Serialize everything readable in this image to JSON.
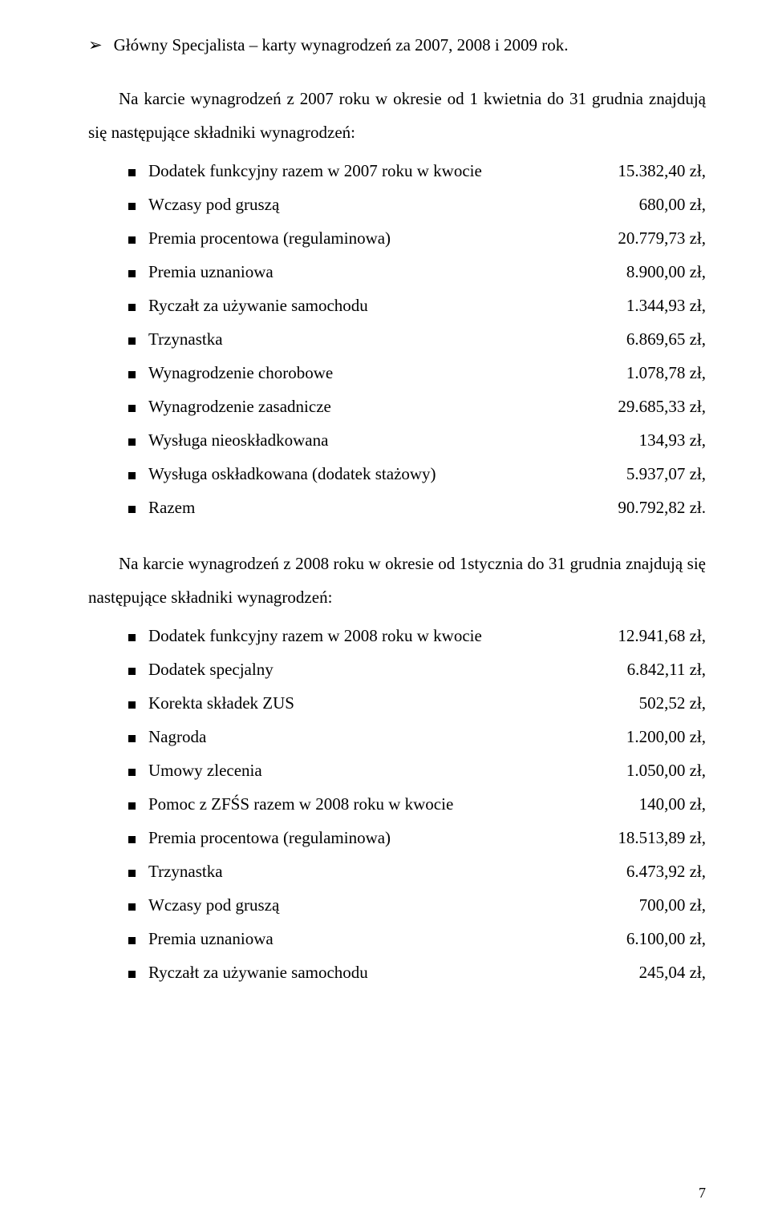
{
  "heading": "Główny Specjalista – karty wynagrodzeń za 2007, 2008 i 2009 rok.",
  "para1": "Na  karcie wynagrodzeń z 2007 roku w okresie od 1 kwietnia do 31 grudnia znajdują się następujące składniki wynagrodzeń:",
  "list1": [
    {
      "label": "Dodatek funkcyjny razem w 2007 roku w kwocie",
      "value": "15.382,40 zł,"
    },
    {
      "label": "Wczasy pod gruszą",
      "value": "680,00 zł,"
    },
    {
      "label": "Premia procentowa (regulaminowa)",
      "value": "20.779,73 zł,"
    },
    {
      "label": "Premia uznaniowa",
      "value": "8.900,00 zł,"
    },
    {
      "label": "Ryczałt za używanie samochodu",
      "value": "1.344,93 zł,"
    },
    {
      "label": "Trzynastka",
      "value": "6.869,65 zł,"
    },
    {
      "label": "Wynagrodzenie chorobowe",
      "value": "1.078,78 zł,"
    },
    {
      "label": "Wynagrodzenie zasadnicze",
      "value": "29.685,33 zł,"
    },
    {
      "label": "Wysługa nieoskładkowana",
      "value": "134,93 zł,"
    },
    {
      "label": "Wysługa oskładkowana   (dodatek stażowy)",
      "value": "5.937,07 zł,"
    },
    {
      "label": "Razem",
      "value": "90.792,82 zł."
    }
  ],
  "para2": "Na  karcie wynagrodzeń z 2008 roku w okresie od 1stycznia do 31 grudnia znajdują się następujące składniki wynagrodzeń:",
  "list2": [
    {
      "label": "Dodatek funkcyjny razem w 2008 roku w kwocie",
      "value": "12.941,68 zł,"
    },
    {
      "label": "Dodatek specjalny",
      "value": "6.842,11 zł,"
    },
    {
      "label": "Korekta składek ZUS",
      "value": "502,52 zł,"
    },
    {
      "label": "Nagroda",
      "value": "1.200,00 zł,"
    },
    {
      "label": "Umowy zlecenia",
      "value": "1.050,00 zł,"
    },
    {
      "label": "Pomoc z ZFŚS razem w 2008 roku w kwocie",
      "value": "140,00 zł,"
    },
    {
      "label": "Premia procentowa (regulaminowa)",
      "value": "18.513,89 zł,"
    },
    {
      "label": "Trzynastka",
      "value": "6.473,92 zł,"
    },
    {
      "label": "Wczasy pod gruszą",
      "value": "700,00 zł,"
    },
    {
      "label": "Premia uznaniowa",
      "value": "6.100,00 zł,"
    },
    {
      "label": "Ryczałt za używanie samochodu",
      "value": "245,04 zł,"
    }
  ],
  "pageNumber": "7"
}
